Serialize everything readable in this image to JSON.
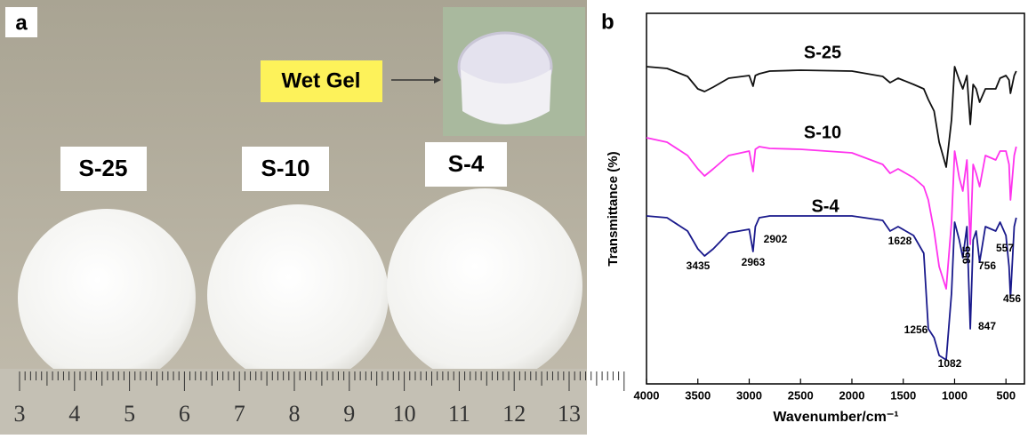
{
  "panel_a": {
    "label": "a",
    "sample_labels": [
      "S-25",
      "S-10",
      "S-4"
    ],
    "inset_label": "Wet Gel",
    "ruler_numbers": [
      3,
      4,
      5,
      6,
      7,
      8,
      9,
      10,
      11,
      12,
      13
    ]
  },
  "chart_data": {
    "type": "line",
    "panel_label": "b",
    "xlabel": "Wavenumber/cm⁻¹",
    "ylabel": "Transmittance (%)",
    "x": [
      4000,
      3800,
      3600,
      3500,
      3435,
      3350,
      3200,
      3000,
      2963,
      2940,
      2902,
      2800,
      2500,
      2000,
      1700,
      1628,
      1550,
      1400,
      1300,
      1256,
      1200,
      1150,
      1082,
      1030,
      1000,
      955,
      920,
      880,
      847,
      820,
      790,
      756,
      700,
      600,
      557,
      500,
      470,
      456,
      420,
      400
    ],
    "xlim": [
      4000,
      320
    ],
    "xticks": [
      4000,
      3500,
      3000,
      2500,
      2000,
      1500,
      1000,
      500
    ],
    "ylim": [
      0,
      385
    ],
    "series": [
      {
        "name": "S-25",
        "color": "#111111",
        "values": [
          355,
          353,
          344,
          330,
          327,
          332,
          342,
          345,
          333,
          345,
          347,
          350,
          351,
          350,
          344,
          337,
          342,
          335,
          330,
          318,
          305,
          270,
          242,
          295,
          355,
          340,
          330,
          345,
          290,
          335,
          330,
          315,
          330,
          330,
          342,
          345,
          340,
          325,
          345,
          350
        ]
      },
      {
        "name": "S-10",
        "color": "#ff33ee",
        "values": [
          275,
          270,
          255,
          240,
          232,
          240,
          255,
          260,
          237,
          262,
          265,
          263,
          262,
          258,
          245,
          235,
          240,
          230,
          220,
          205,
          170,
          130,
          105,
          180,
          260,
          230,
          215,
          250,
          155,
          245,
          235,
          220,
          255,
          250,
          260,
          260,
          245,
          205,
          255,
          265
        ]
      },
      {
        "name": "S-4",
        "color": "#1a1a8c",
        "values": [
          187,
          185,
          170,
          150,
          142,
          150,
          168,
          172,
          147,
          175,
          185,
          187,
          187,
          187,
          182,
          170,
          175,
          165,
          145,
          60,
          50,
          30,
          25,
          100,
          180,
          160,
          140,
          175,
          60,
          160,
          170,
          135,
          175,
          170,
          180,
          165,
          130,
          95,
          175,
          185
        ]
      }
    ],
    "annotations": [
      "3435",
      "2963",
      "2902",
      "1628",
      "1256",
      "1082",
      "955",
      "847",
      "756",
      "557",
      "456"
    ]
  }
}
